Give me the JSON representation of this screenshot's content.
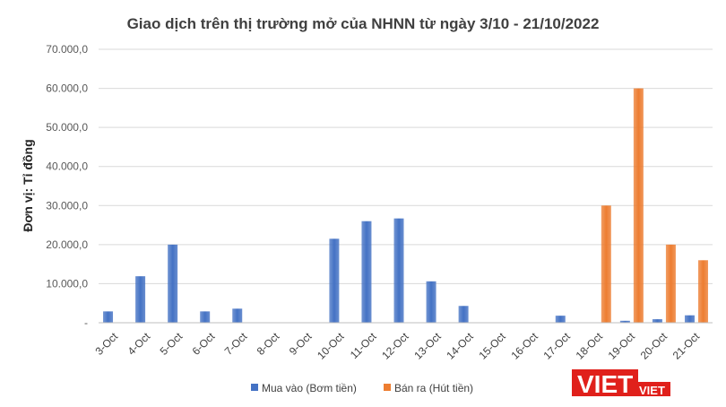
{
  "chart_data": {
    "type": "bar",
    "title": "Giao dịch trên thị trường mở của NHNN từ ngày 3/10 - 21/10/2022",
    "ylabel": "Đơn vị: Tỉ đồng",
    "xlabel": "",
    "ylim": [
      0,
      70000
    ],
    "yticks": [
      0,
      10000,
      20000,
      30000,
      40000,
      50000,
      60000,
      70000
    ],
    "ytick_labels": [
      "-",
      "10.000,0",
      "20.000,0",
      "30.000,0",
      "40.000,0",
      "50.000,0",
      "60.000,0",
      "70.000,0"
    ],
    "categories": [
      "3-Oct",
      "4-Oct",
      "5-Oct",
      "6-Oct",
      "7-Oct",
      "8-Oct",
      "9-Oct",
      "10-Oct",
      "11-Oct",
      "12-Oct",
      "13-Oct",
      "14-Oct",
      "15-Oct",
      "16-Oct",
      "17-Oct",
      "18-Oct",
      "19-Oct",
      "20-Oct",
      "21-Oct"
    ],
    "series": [
      {
        "name": "Mua vào (Bơm tiền)",
        "color": "#4472c4",
        "values": [
          2900,
          11900,
          20000,
          2900,
          3600,
          0,
          0,
          21500,
          26000,
          26700,
          10600,
          4300,
          0,
          0,
          1800,
          0,
          500,
          900,
          1900
        ]
      },
      {
        "name": "Bán ra (Hút tiền)",
        "color": "#ed7d31",
        "values": [
          0,
          0,
          0,
          0,
          0,
          0,
          0,
          0,
          0,
          0,
          0,
          0,
          0,
          0,
          0,
          30000,
          60000,
          20000,
          16000
        ]
      }
    ],
    "grid": true,
    "legend_position": "bottom"
  },
  "watermark": {
    "text": "VIET",
    "suffix": "VIET",
    "colors": {
      "red": "#e0201b",
      "white": "#ffffff"
    }
  }
}
